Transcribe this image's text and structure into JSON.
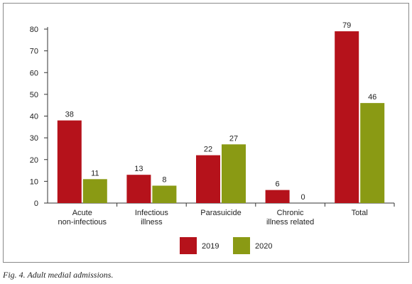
{
  "chart_data": {
    "type": "bar",
    "categories": [
      [
        "Acute",
        "non-infectious"
      ],
      [
        "Infectious",
        "illness"
      ],
      [
        "Parasuicide"
      ],
      [
        "Chronic",
        "illness related"
      ],
      [
        "Total"
      ]
    ],
    "series": [
      {
        "name": "2019",
        "values": [
          38,
          13,
          22,
          6,
          79
        ],
        "color": "#b5121b"
      },
      {
        "name": "2020",
        "values": [
          11,
          8,
          27,
          0,
          46
        ],
        "color": "#8a9a14"
      }
    ],
    "ylim": [
      0,
      80
    ],
    "yticks": [
      0,
      10,
      20,
      30,
      40,
      50,
      60,
      70,
      80
    ],
    "legend_position": "bottom-center",
    "grid": false,
    "data_labels": true
  },
  "caption": "Fig. 4. Adult medial admissions."
}
